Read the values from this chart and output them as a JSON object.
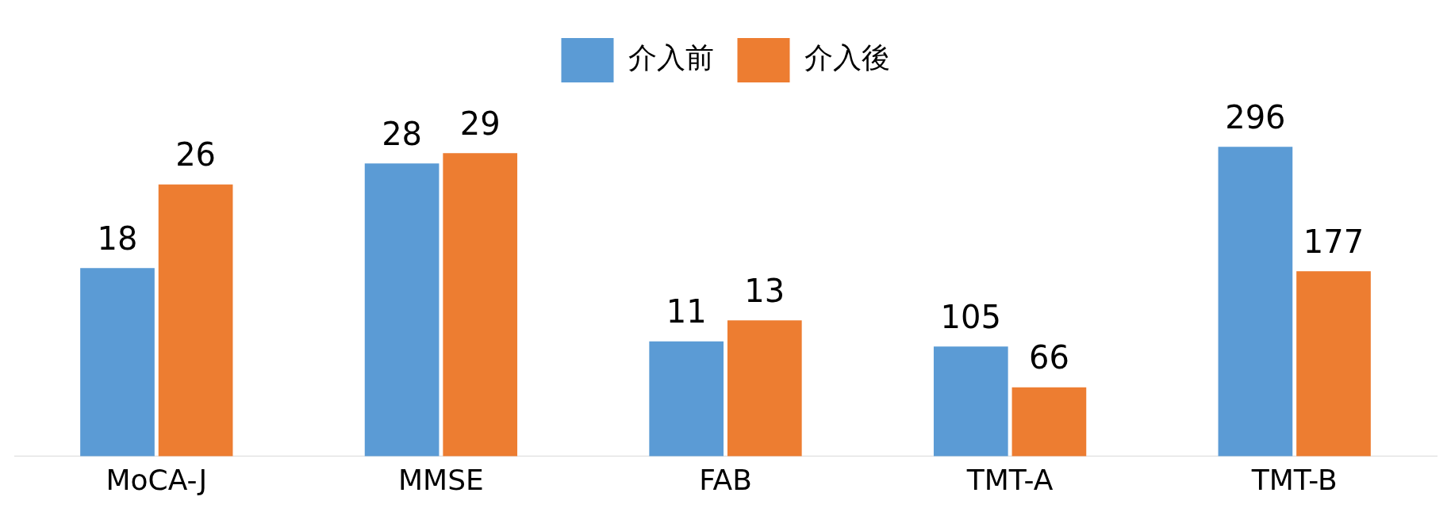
{
  "chart_data": {
    "type": "bar",
    "categories": [
      "MoCA-J",
      "MMSE",
      "FAB",
      "TMT-A",
      "TMT-B"
    ],
    "series": [
      {
        "name": "介入前",
        "color": "#5b9bd5",
        "values": [
          18,
          28,
          11,
          null,
          null
        ]
      },
      {
        "name": "介入後",
        "color": "#ed7d31",
        "values": [
          26,
          29,
          13,
          null,
          null
        ]
      },
      {
        "color": "#5b9bd5",
        "axis": "y2",
        "values": [
          null,
          null,
          null,
          105,
          296
        ]
      },
      {
        "color": "#ed7d31",
        "axis": "y2",
        "values": [
          null,
          null,
          null,
          66,
          177
        ]
      }
    ],
    "tick_labels": "x",
    "data_labels": true,
    "legend": "top",
    "grid": false
  }
}
